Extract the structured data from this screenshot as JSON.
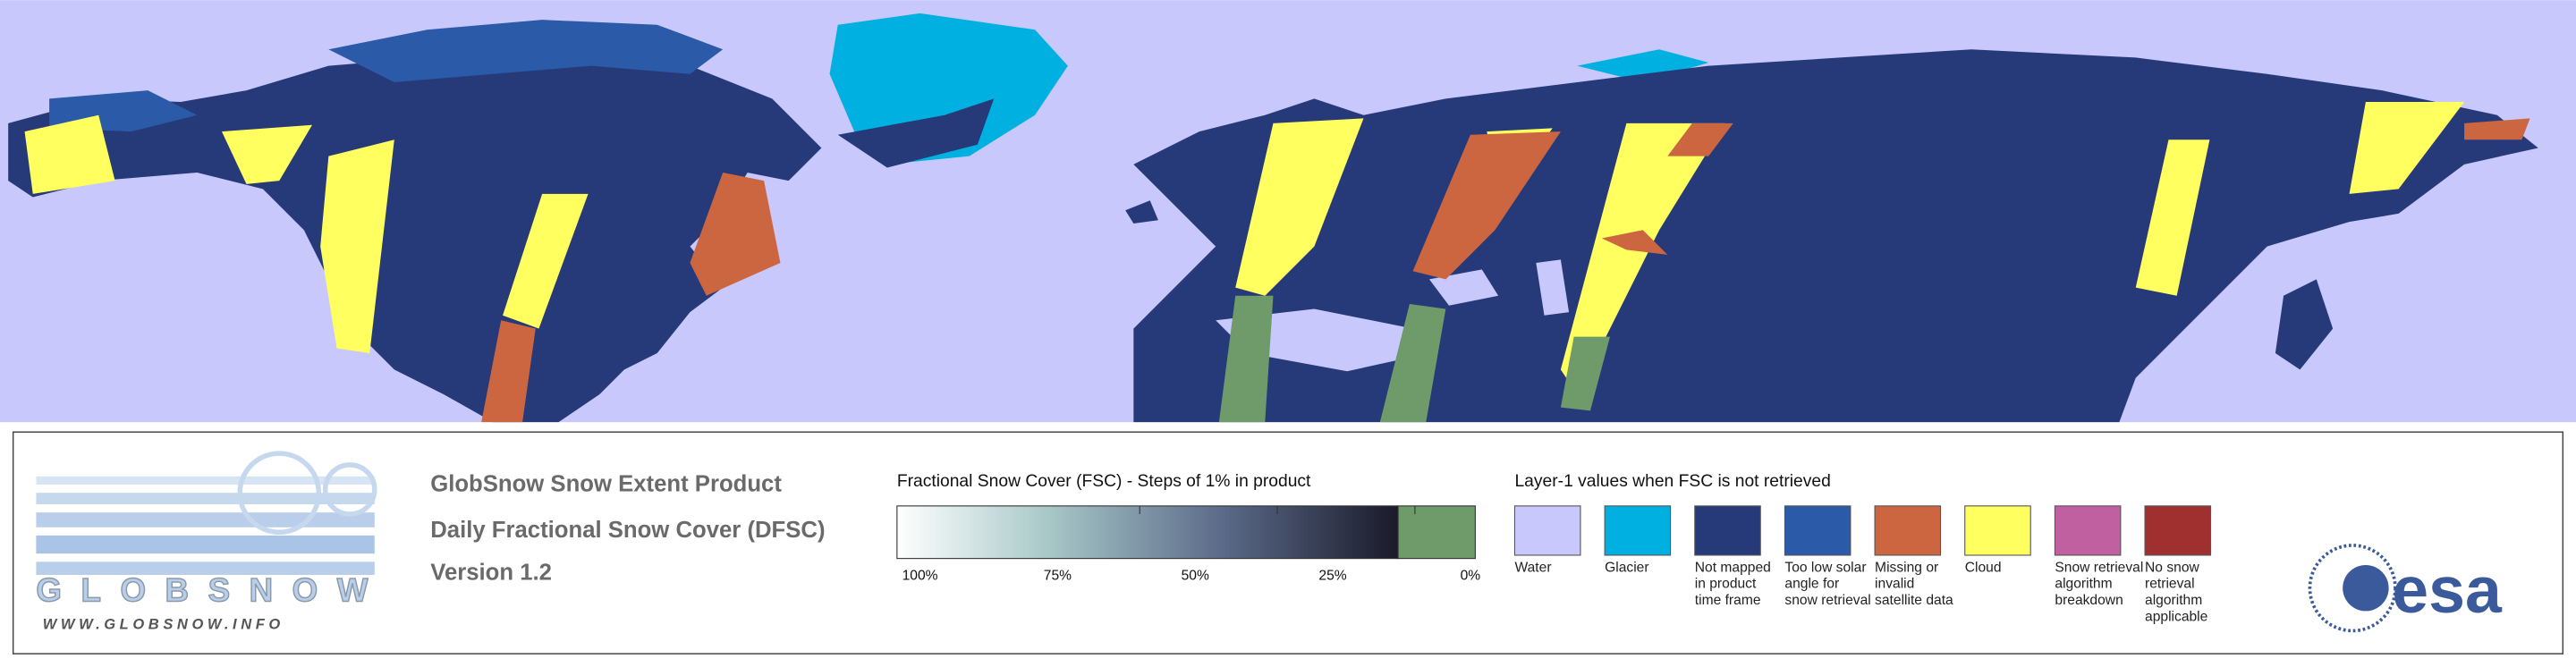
{
  "logo": {
    "name": "GLOBSNOW",
    "url": "WWW.GLOBSNOW.INFO"
  },
  "header": {
    "lines": [
      "GlobSnow Snow Extent Product",
      "Daily Fractional Snow Cover (DFSC)",
      "Version 1.2"
    ]
  },
  "fsc_scale": {
    "title": "Fractional Snow Cover (FSC) - Steps of 1% in product",
    "labels": [
      "100%",
      "75%",
      "50%",
      "25%",
      "0%"
    ]
  },
  "layer1": {
    "title": "Layer-1 values when FSC is not retrieved",
    "items": [
      {
        "label": "Water",
        "color": "#c8c8fc"
      },
      {
        "label": "Glacier",
        "color": "#00b0e0"
      },
      {
        "label": "Not mapped in product time frame",
        "color": "#263a7a"
      },
      {
        "label": "Too low solar angle for snow retrieval",
        "color": "#2a5aa8"
      },
      {
        "label": "Missing or invalid satellite data",
        "color": "#cc6640"
      },
      {
        "label": "Cloud",
        "color": "#ffff60"
      },
      {
        "label": "Snow retrieval algorithm breakdown",
        "color": "#c060a0"
      },
      {
        "label": "No snow retrieval algorithm applicable",
        "color": "#a03030"
      }
    ]
  },
  "agency": "esa"
}
